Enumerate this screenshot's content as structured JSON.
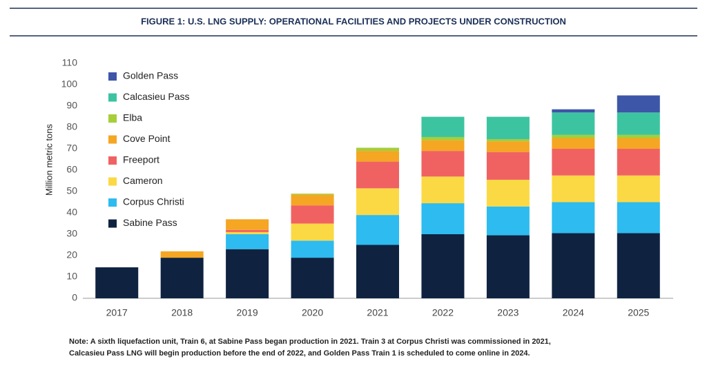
{
  "chart_data": {
    "type": "stacked-bar",
    "title": "FIGURE 1: U.S. LNG SUPPLY: OPERATIONAL FACILITIES AND PROJECTS UNDER CONSTRUCTION",
    "y_label": "Million metric tons",
    "note": "Note: A sixth liquefaction unit, Train 6, at Sabine Pass began production in 2021. Train 3 at Corpus Christi was commissioned in 2021, Calcasieu Pass LNG will begin production before the end of 2022, and Golden Pass Train 1 is scheduled to come online in 2024.",
    "categories": [
      "2017",
      "2018",
      "2019",
      "2020",
      "2021",
      "2022",
      "2023",
      "2024",
      "2025"
    ],
    "series": [
      {
        "name": "Sabine Pass",
        "color": "#0f2341",
        "values": [
          14.5,
          19,
          23,
          19,
          25,
          30,
          29.5,
          30.5,
          30.5
        ]
      },
      {
        "name": "Corpus Christi",
        "color": "#2ebbef",
        "values": [
          0,
          0,
          7,
          8,
          14,
          14.5,
          13.5,
          14.5,
          14.5
        ]
      },
      {
        "name": "Cameron",
        "color": "#fbd944",
        "values": [
          0,
          0,
          1,
          8,
          12.5,
          12.5,
          12.5,
          12.5,
          12.5
        ]
      },
      {
        "name": "Freeport",
        "color": "#f06262",
        "values": [
          0,
          0,
          1,
          8.5,
          12.5,
          12,
          13,
          12.5,
          12.5
        ]
      },
      {
        "name": "Cove Point",
        "color": "#f5a623",
        "values": [
          0,
          3,
          5,
          5,
          5,
          5,
          5,
          5,
          5
        ]
      },
      {
        "name": "Elba",
        "color": "#a6ce39",
        "values": [
          0,
          0,
          0,
          0.5,
          1.5,
          1.5,
          1,
          1.5,
          1.5
        ]
      },
      {
        "name": "Calcasieu Pass",
        "color": "#3cc4a0",
        "values": [
          0,
          0,
          0,
          0,
          0,
          9.5,
          10.5,
          10.5,
          10.5
        ]
      },
      {
        "name": "Golden Pass",
        "color": "#3d56a8",
        "values": [
          0,
          0,
          0,
          0,
          0,
          0,
          0,
          1.5,
          8
        ]
      }
    ],
    "ylim": [
      0,
      110
    ],
    "yticks": [
      0,
      10,
      20,
      30,
      40,
      50,
      60,
      70,
      80,
      90,
      100,
      110
    ],
    "grid": false
  }
}
